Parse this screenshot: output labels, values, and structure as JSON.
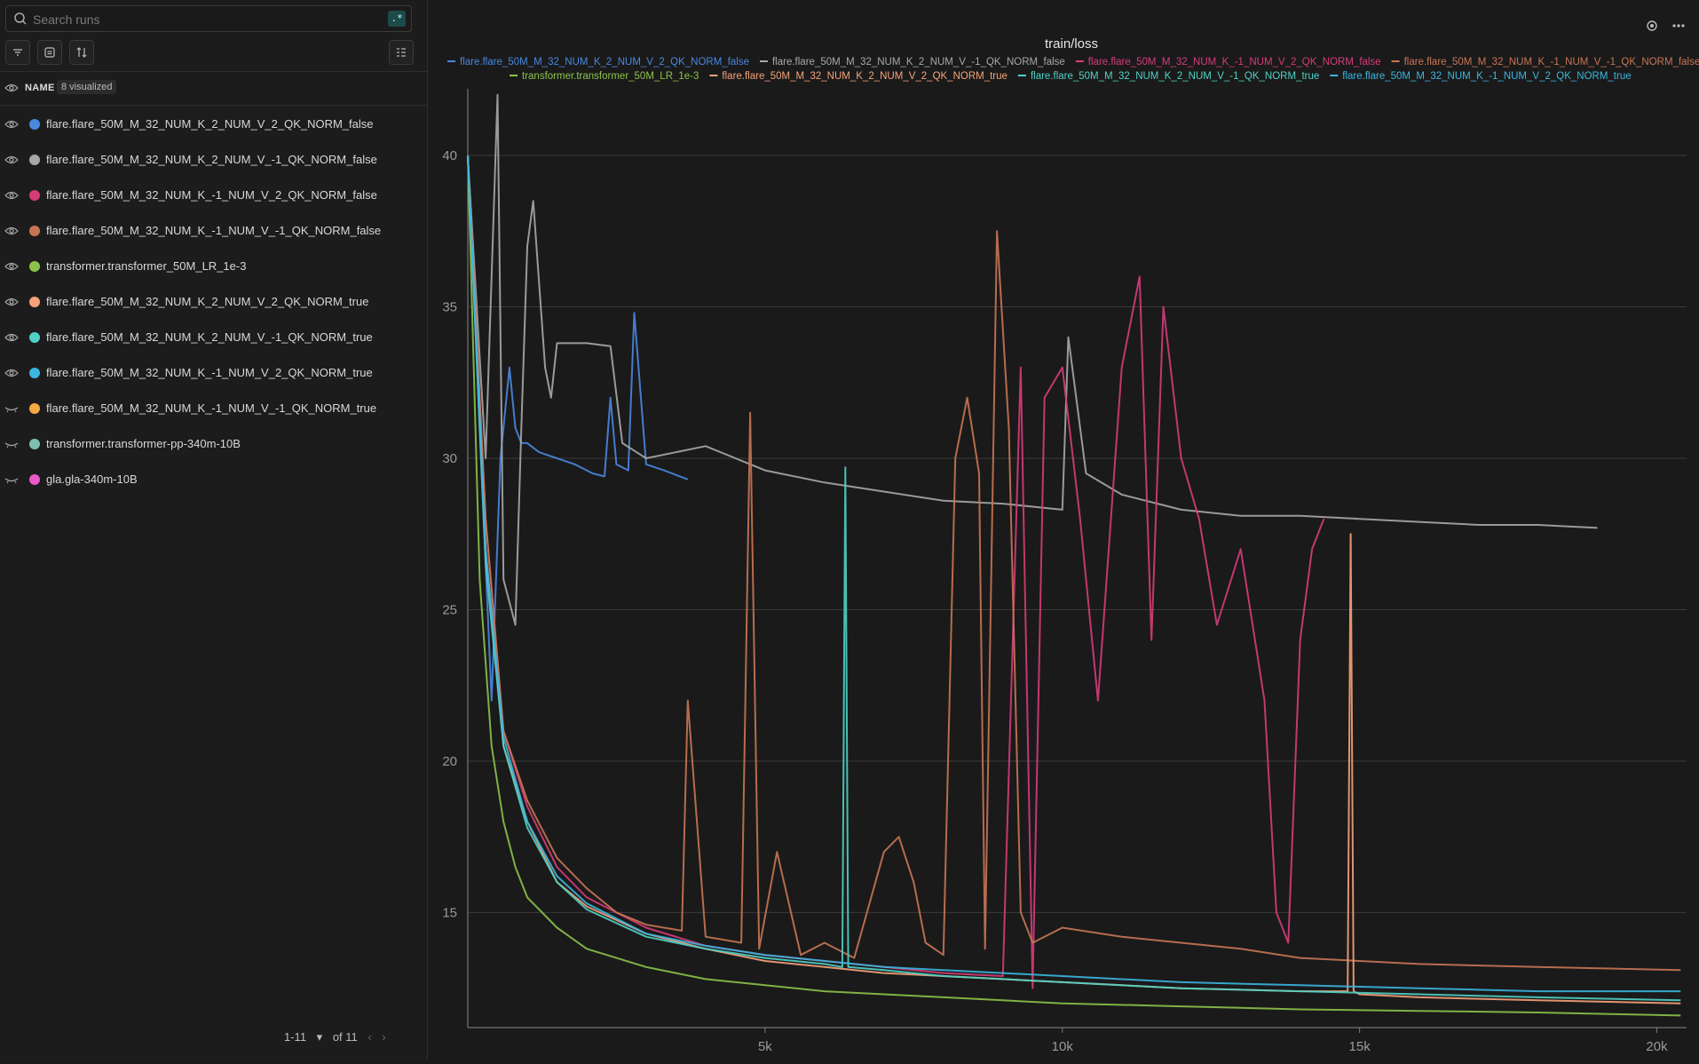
{
  "search": {
    "placeholder": "Search runs",
    "regex_label": ".*"
  },
  "header": {
    "name_label": "NAME",
    "visualized_badge": "8 visualized"
  },
  "runs": [
    {
      "name": "flare.flare_50M_M_32_NUM_K_2_NUM_V_2_QK_NORM_false",
      "color": "#4a87e0",
      "visible": true
    },
    {
      "name": "flare.flare_50M_M_32_NUM_K_2_NUM_V_-1_QK_NORM_false",
      "color": "#a8a8a8",
      "visible": true
    },
    {
      "name": "flare.flare_50M_M_32_NUM_K_-1_NUM_V_2_QK_NORM_false",
      "color": "#d63c7a",
      "visible": true
    },
    {
      "name": "flare.flare_50M_M_32_NUM_K_-1_NUM_V_-1_QK_NORM_false",
      "color": "#c97555",
      "visible": true
    },
    {
      "name": "transformer.transformer_50M_LR_1e-3",
      "color": "#8bc34a",
      "visible": true
    },
    {
      "name": "flare.flare_50M_M_32_NUM_K_2_NUM_V_2_QK_NORM_true",
      "color": "#f7a27a",
      "visible": true
    },
    {
      "name": "flare.flare_50M_M_32_NUM_K_2_NUM_V_-1_QK_NORM_true",
      "color": "#4fd1c5",
      "visible": true
    },
    {
      "name": "flare.flare_50M_M_32_NUM_K_-1_NUM_V_2_QK_NORM_true",
      "color": "#3bb6e0",
      "visible": true
    },
    {
      "name": "flare.flare_50M_M_32_NUM_K_-1_NUM_V_-1_QK_NORM_true",
      "color": "#f5a742",
      "visible": false
    },
    {
      "name": "transformer.transformer-pp-340m-10B",
      "color": "#7fbfb0",
      "visible": false
    },
    {
      "name": "gla.gla-340m-10B",
      "color": "#e85bc8",
      "visible": false
    }
  ],
  "pager": {
    "range": "1-11",
    "of": "of 11"
  },
  "chart_data": {
    "type": "line",
    "title": "train/loss",
    "xlabel": "",
    "ylabel": "",
    "xlim": [
      0,
      20500
    ],
    "ylim": [
      11.2,
      42.2
    ],
    "xticks": [
      5000,
      10000,
      15000,
      20000
    ],
    "xtick_labels": [
      "5k",
      "10k",
      "15k",
      "20k"
    ],
    "yticks": [
      15,
      20,
      25,
      30,
      35,
      40
    ],
    "ytick_labels": [
      "15",
      "20",
      "25",
      "30",
      "35",
      "40"
    ],
    "grid": true,
    "legend_position": "top",
    "series": [
      {
        "name": "flare.flare_50M_M_32_NUM_K_2_NUM_V_2_QK_NORM_false",
        "color": "#4a87e0",
        "x": [
          0,
          200,
          400,
          550,
          700,
          800,
          900,
          1000,
          1200,
          1500,
          1800,
          2100,
          2300,
          2400,
          2500,
          2700,
          2800,
          3000,
          3300,
          3700
        ],
        "y": [
          40,
          31,
          22,
          30,
          33,
          31,
          30.5,
          30.5,
          30.2,
          30,
          29.8,
          29.5,
          29.4,
          32,
          29.8,
          29.6,
          34.8,
          29.8,
          29.6,
          29.3
        ]
      },
      {
        "name": "flare.flare_50M_M_32_NUM_K_2_NUM_V_-1_QK_NORM_false",
        "color": "#a8a8a8",
        "x": [
          0,
          300,
          500,
          600,
          800,
          900,
          1000,
          1100,
          1300,
          1400,
          1500,
          2000,
          2400,
          2600,
          3000,
          3500,
          4000,
          5000,
          6000,
          7000,
          8000,
          9000,
          10000,
          10100,
          10400,
          11000,
          12000,
          13000,
          14000,
          15000,
          16000,
          17000,
          18000,
          19000
        ],
        "y": [
          40,
          30,
          42,
          26,
          24.5,
          31,
          37,
          38.5,
          33,
          32,
          33.8,
          33.8,
          33.7,
          30.5,
          30,
          30.2,
          30.4,
          29.6,
          29.2,
          28.9,
          28.6,
          28.5,
          28.3,
          34,
          29.5,
          28.8,
          28.3,
          28.1,
          28.1,
          28.0,
          27.9,
          27.8,
          27.8,
          27.7
        ]
      },
      {
        "name": "flare.flare_50M_M_32_NUM_K_-1_NUM_V_2_QK_NORM_false",
        "color": "#d63c7a",
        "x": [
          0,
          300,
          600,
          1000,
          1500,
          2000,
          3000,
          4000,
          5000,
          6000,
          7000,
          8000,
          9000,
          9300,
          9500,
          9700,
          10000,
          10300,
          10600,
          11000,
          11300,
          11500,
          11700,
          12000,
          12300,
          12600,
          13000,
          13400,
          13600,
          13800,
          14000,
          14200,
          14400
        ],
        "y": [
          40,
          28,
          21,
          18.5,
          16.5,
          15.5,
          14.5,
          13.9,
          13.6,
          13.4,
          13.2,
          13.0,
          12.9,
          33,
          12.5,
          32,
          33,
          28,
          22,
          33,
          36,
          24,
          35,
          30,
          28,
          24.5,
          27,
          22,
          15,
          14,
          24,
          27,
          28
        ]
      },
      {
        "name": "flare.flare_50M_M_32_NUM_K_-1_NUM_V_-1_QK_NORM_false",
        "color": "#c97555",
        "x": [
          0,
          300,
          600,
          1000,
          1500,
          2000,
          2500,
          3000,
          3600,
          3700,
          4000,
          4600,
          4750,
          4900,
          5200,
          5600,
          6000,
          6500,
          7000,
          7250,
          7500,
          7700,
          8000,
          8200,
          8400,
          8600,
          8700,
          8900,
          9100,
          9300,
          9500,
          10000,
          11000,
          12000,
          13000,
          14000,
          15000,
          16000,
          18000,
          20400
        ],
        "y": [
          40,
          28,
          21,
          18.7,
          16.8,
          15.8,
          15,
          14.6,
          14.4,
          22,
          14.2,
          14.0,
          31.5,
          13.8,
          17,
          13.6,
          14.0,
          13.5,
          17,
          17.5,
          16,
          14,
          13.6,
          30,
          32,
          29.5,
          13.8,
          37.5,
          31,
          15,
          14,
          14.5,
          14.2,
          14.0,
          13.8,
          13.5,
          13.4,
          13.3,
          13.2,
          13.1
        ]
      },
      {
        "name": "transformer.transformer_50M_LR_1e-3",
        "color": "#8bc34a",
        "x": [
          0,
          200,
          400,
          600,
          800,
          1000,
          1500,
          2000,
          3000,
          4000,
          5000,
          6000,
          7000,
          8000,
          9000,
          10000,
          12000,
          14000,
          16000,
          18000,
          20400
        ],
        "y": [
          40,
          26,
          20.5,
          18,
          16.5,
          15.5,
          14.5,
          13.8,
          13.2,
          12.8,
          12.6,
          12.4,
          12.3,
          12.2,
          12.1,
          12.0,
          11.9,
          11.8,
          11.75,
          11.7,
          11.6
        ]
      },
      {
        "name": "flare.flare_50M_M_32_NUM_K_2_NUM_V_2_QK_NORM_true",
        "color": "#f7a27a",
        "x": [
          0,
          300,
          600,
          1000,
          1500,
          2000,
          3000,
          4000,
          5000,
          6000,
          7000,
          8000,
          9000,
          10000,
          12000,
          14000,
          14800,
          14850,
          14900,
          15000,
          16000,
          18000,
          20400
        ],
        "y": [
          40,
          27,
          20.5,
          18,
          16,
          15.2,
          14.3,
          13.8,
          13.4,
          13.2,
          13.0,
          12.9,
          12.8,
          12.7,
          12.5,
          12.4,
          12.4,
          27.5,
          12.4,
          12.3,
          12.2,
          12.1,
          12.0
        ]
      },
      {
        "name": "flare.flare_50M_M_32_NUM_K_2_NUM_V_-1_QK_NORM_true",
        "color": "#4fd1c5",
        "x": [
          0,
          300,
          600,
          1000,
          1500,
          2000,
          3000,
          4000,
          5000,
          6000,
          6300,
          6350,
          6400,
          7000,
          8000,
          9000,
          10000,
          12000,
          14000,
          16000,
          18000,
          20400
        ],
        "y": [
          40,
          26.5,
          20.5,
          17.8,
          16,
          15.1,
          14.2,
          13.8,
          13.5,
          13.3,
          13.2,
          29.7,
          13.2,
          13.1,
          12.9,
          12.8,
          12.7,
          12.5,
          12.4,
          12.3,
          12.2,
          12.1
        ]
      },
      {
        "name": "flare.flare_50M_M_32_NUM_K_-1_NUM_V_2_QK_NORM_true",
        "color": "#3bb6e0",
        "x": [
          0,
          300,
          600,
          1000,
          1500,
          2000,
          3000,
          4000,
          5000,
          6000,
          7000,
          8000,
          9000,
          10000,
          12000,
          14000,
          16000,
          18000,
          20400
        ],
        "y": [
          40,
          27,
          20.8,
          18,
          16.2,
          15.3,
          14.3,
          13.9,
          13.6,
          13.4,
          13.2,
          13.1,
          13.0,
          12.9,
          12.7,
          12.6,
          12.5,
          12.4,
          12.4
        ]
      }
    ]
  }
}
